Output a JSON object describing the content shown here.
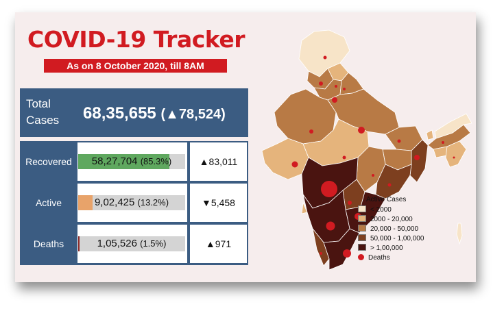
{
  "header": {
    "title": "COVID-19 Tracker",
    "subtitle": "As on 8 October 2020, till 8AM"
  },
  "total": {
    "label": "Total Cases",
    "value": "68,35,655",
    "delta": "(▲78,524)"
  },
  "stats": [
    {
      "label": "Recovered",
      "value": "58,27,704",
      "percent": "(85.3%)",
      "share": 0.853,
      "color": "#5fa85f",
      "delta": "▲83,011"
    },
    {
      "label": "Active",
      "value": "9,02,425",
      "percent": "(13.2%)",
      "share": 0.132,
      "color": "#e8a36a",
      "delta": "▼5,458"
    },
    {
      "label": "Deaths",
      "value": "1,05,526",
      "percent": "(1.5%)",
      "share": 0.015,
      "color": "#8b2a2a",
      "delta": "▲971"
    }
  ],
  "legend": {
    "title": "Active Cases",
    "items": [
      {
        "label": "< 2000",
        "color": "#f7e4c8"
      },
      {
        "label": "2000 - 20,000",
        "color": "#e5b47c"
      },
      {
        "label": "20,000 - 50,000",
        "color": "#b87a45"
      },
      {
        "label": "50,000 - 1,00,000",
        "color": "#7d3f1f"
      },
      {
        "label": "> 1,00,000",
        "color": "#4a1410"
      }
    ],
    "deaths_label": "Deaths",
    "deaths_color": "#d11b21"
  }
}
